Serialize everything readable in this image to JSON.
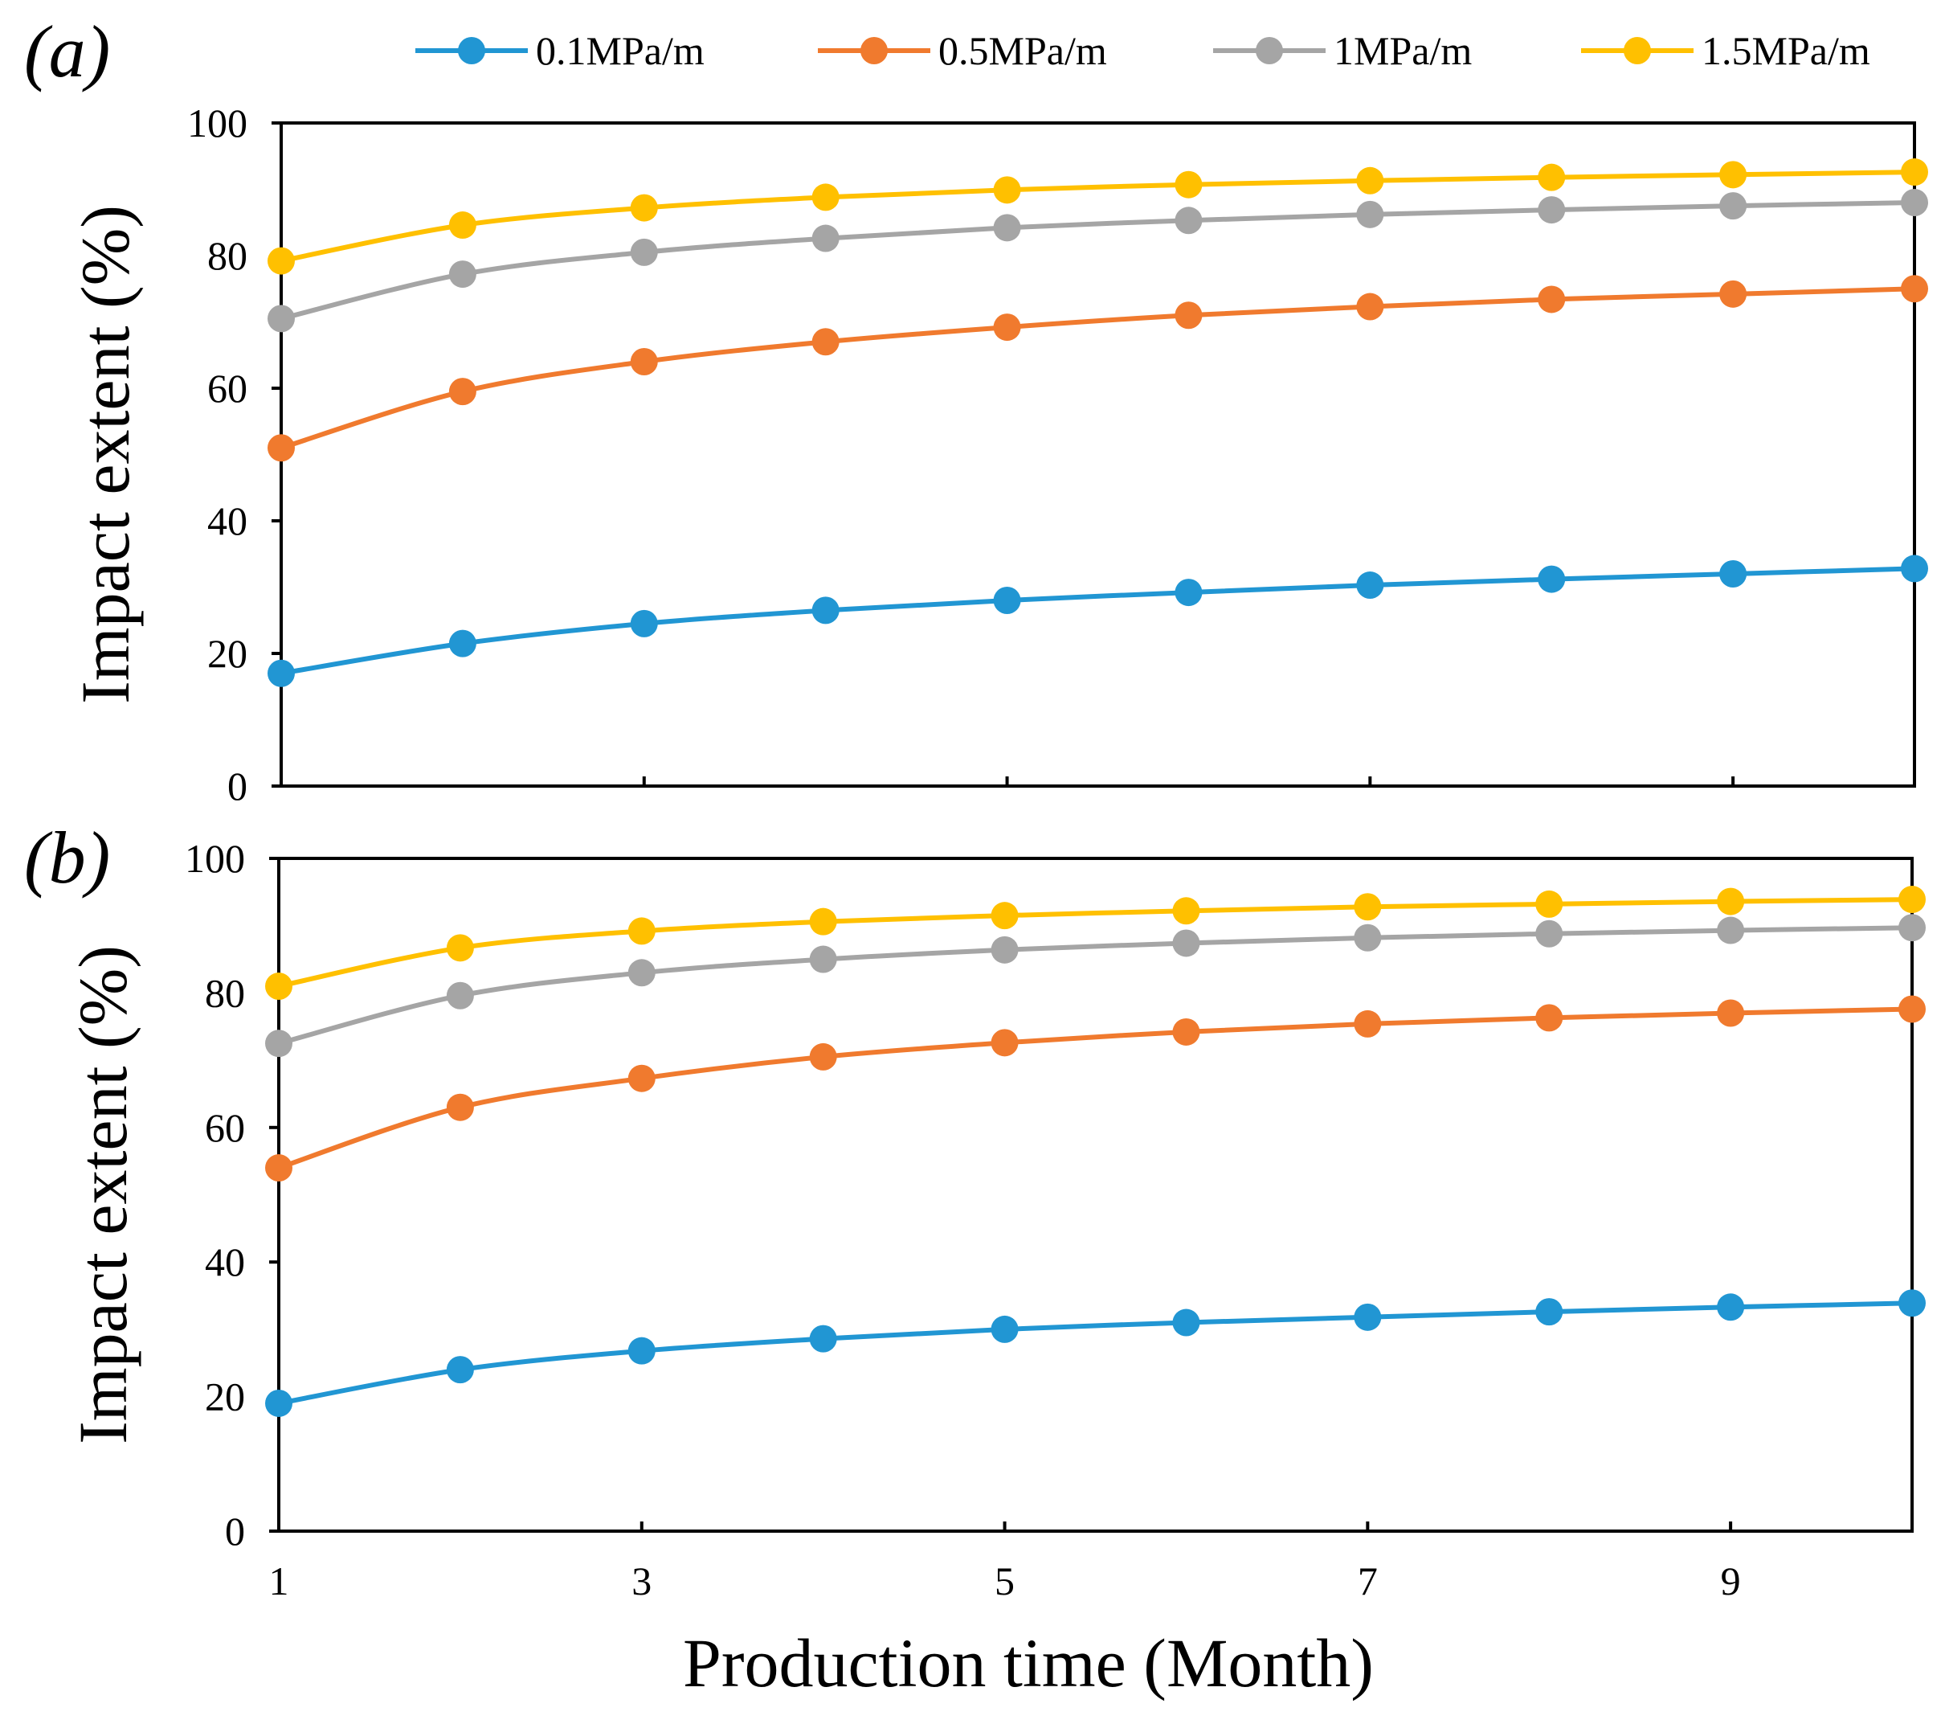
{
  "chart_data": {
    "type": "line",
    "x": [
      1,
      2,
      3,
      4,
      5,
      6,
      7,
      8,
      9,
      10
    ],
    "x_tick_labels": [
      "1",
      "3",
      "5",
      "7",
      "9"
    ],
    "xlim": [
      1,
      10
    ],
    "ylim": [
      0,
      100
    ],
    "y_tick_labels": [
      "0",
      "20",
      "40",
      "60",
      "80",
      "100"
    ],
    "xlabel": "Production time (Month)",
    "ylabel": "Impact extent (%)",
    "legend_position": "top",
    "colors": {
      "0.1MPa/m": "#2196D3",
      "0.5MPa/m": "#F07A2E",
      "1MPa/m": "#A5A5A5",
      "1.5MPa/m": "#FFC000"
    },
    "legend": [
      "0.1MPa/m",
      "0.5MPa/m",
      "1MPa/m",
      "1.5MPa/m"
    ],
    "panels": [
      {
        "label": "(a)",
        "series": [
          {
            "name": "0.1MPa/m",
            "values": [
              17.0,
              21.5,
              24.5,
              26.5,
              28.0,
              29.2,
              30.3,
              31.2,
              32.0,
              32.8
            ]
          },
          {
            "name": "0.5MPa/m",
            "values": [
              51.0,
              59.5,
              64.0,
              67.0,
              69.2,
              71.0,
              72.3,
              73.4,
              74.2,
              75.0
            ]
          },
          {
            "name": "1MPa/m",
            "values": [
              70.5,
              77.2,
              80.5,
              82.6,
              84.2,
              85.3,
              86.2,
              86.9,
              87.5,
              88.0
            ]
          },
          {
            "name": "1.5MPa/m",
            "values": [
              79.2,
              84.6,
              87.2,
              88.8,
              89.9,
              90.7,
              91.3,
              91.8,
              92.2,
              92.6
            ]
          }
        ]
      },
      {
        "label": "(b)",
        "series": [
          {
            "name": "0.1MPa/m",
            "values": [
              19.0,
              24.0,
              26.8,
              28.6,
              30.0,
              31.0,
              31.8,
              32.6,
              33.3,
              33.9
            ]
          },
          {
            "name": "0.5MPa/m",
            "values": [
              54.0,
              63.0,
              67.3,
              70.5,
              72.6,
              74.2,
              75.4,
              76.3,
              77.0,
              77.6
            ]
          },
          {
            "name": "1MPa/m",
            "values": [
              72.5,
              79.6,
              83.0,
              85.0,
              86.4,
              87.4,
              88.2,
              88.8,
              89.3,
              89.7
            ]
          },
          {
            "name": "1.5MPa/m",
            "values": [
              81.0,
              86.7,
              89.2,
              90.6,
              91.5,
              92.2,
              92.8,
              93.2,
              93.6,
              93.9
            ]
          }
        ]
      }
    ]
  }
}
